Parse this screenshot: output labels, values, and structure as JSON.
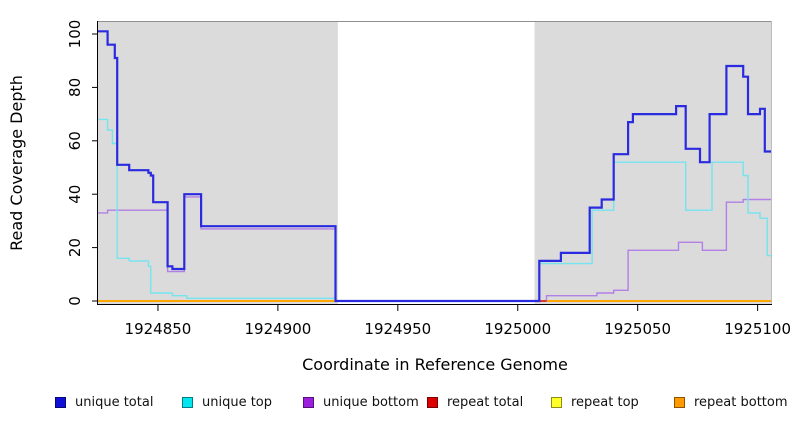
{
  "chart_data": {
    "type": "line",
    "step": true,
    "title": "",
    "xlabel": "Coordinate in Reference Genome",
    "ylabel": "Read Coverage Depth",
    "xlim": [
      1924825,
      1925106
    ],
    "ylim": [
      0,
      105
    ],
    "x_ticks": [
      1924850,
      1924900,
      1924950,
      1925000,
      1925050,
      1925100
    ],
    "y_ticks": [
      0,
      20,
      40,
      60,
      80,
      100
    ],
    "grid": false,
    "legend_position": "bottom",
    "shaded_regions": [
      {
        "x0": 1924825,
        "x1": 1924925,
        "color": "#DBDBDB"
      },
      {
        "x0": 1925007,
        "x1": 1925106,
        "color": "#DBDBDB"
      }
    ],
    "series": [
      {
        "id": "repeat-top",
        "name": "repeat top",
        "color": "#FFFF00",
        "width": 1.5,
        "points": [
          [
            1924825,
            0
          ],
          [
            1925106,
            0
          ]
        ]
      },
      {
        "id": "repeat-bottom",
        "name": "repeat bottom",
        "color": "#FFA500",
        "width": 2,
        "points": [
          [
            1924825,
            0
          ],
          [
            1925106,
            0
          ]
        ]
      },
      {
        "id": "unique-bottom",
        "name": "unique bottom",
        "color": "#B27FE6",
        "width": 1.4,
        "points": [
          [
            1924825,
            33
          ],
          [
            1924829,
            34
          ],
          [
            1924854,
            11
          ],
          [
            1924861,
            39
          ],
          [
            1924868,
            27
          ],
          [
            1924924,
            0
          ],
          [
            1925012,
            2
          ],
          [
            1925033,
            3
          ],
          [
            1925040,
            4
          ],
          [
            1925046,
            19
          ],
          [
            1925067,
            22
          ],
          [
            1925077,
            19
          ],
          [
            1925087,
            37
          ],
          [
            1925094,
            38
          ]
        ]
      },
      {
        "id": "repeat-total",
        "name": "repeat total",
        "color": "#DF2020",
        "width": 1.6,
        "points": [
          [
            1925007,
            0
          ],
          [
            1925012,
            0
          ]
        ],
        "end": 1925012
      },
      {
        "id": "unique-top",
        "name": "unique top",
        "color": "#74E4EF",
        "width": 1.4,
        "points": [
          [
            1924825,
            68
          ],
          [
            1924829,
            64
          ],
          [
            1924831,
            59
          ],
          [
            1924833,
            16
          ],
          [
            1924838,
            15
          ],
          [
            1924846,
            13
          ],
          [
            1924847,
            3
          ],
          [
            1924856,
            2
          ],
          [
            1924862,
            1
          ],
          [
            1924924,
            0
          ],
          [
            1925009,
            14
          ],
          [
            1925031,
            34
          ],
          [
            1925040,
            52
          ],
          [
            1925070,
            34
          ],
          [
            1925081,
            52
          ],
          [
            1925094,
            47
          ],
          [
            1925096,
            33
          ],
          [
            1925101,
            31
          ],
          [
            1925104,
            17
          ]
        ]
      },
      {
        "id": "unique-total",
        "name": "unique total",
        "color": "#2A2ADF",
        "width": 2.2,
        "points": [
          [
            1924825,
            101
          ],
          [
            1924829,
            96
          ],
          [
            1924832,
            91
          ],
          [
            1924833,
            51
          ],
          [
            1924838,
            49
          ],
          [
            1924846,
            48
          ],
          [
            1924847,
            47
          ],
          [
            1924848,
            37
          ],
          [
            1924854,
            13
          ],
          [
            1924856,
            12
          ],
          [
            1924861,
            40
          ],
          [
            1924868,
            28
          ],
          [
            1924924,
            0
          ],
          [
            1925009,
            15
          ],
          [
            1925018,
            18
          ],
          [
            1925030,
            35
          ],
          [
            1925035,
            38
          ],
          [
            1925040,
            55
          ],
          [
            1925046,
            67
          ],
          [
            1925048,
            70
          ],
          [
            1925066,
            73
          ],
          [
            1925070,
            57
          ],
          [
            1925076,
            52
          ],
          [
            1925080,
            70
          ],
          [
            1925087,
            88
          ],
          [
            1925094,
            84
          ],
          [
            1925096,
            70
          ],
          [
            1925101,
            72
          ],
          [
            1925103,
            56
          ]
        ]
      }
    ],
    "legend": [
      {
        "id": "unique-total",
        "label": "unique total",
        "swatch": "#0F0FD6"
      },
      {
        "id": "unique-top",
        "label": "unique top",
        "swatch": "#00E5EE"
      },
      {
        "id": "unique-bottom",
        "label": "unique bottom",
        "swatch": "#9B1FDD"
      },
      {
        "id": "repeat-total",
        "label": "repeat total",
        "swatch": "#DD0000"
      },
      {
        "id": "repeat-top",
        "label": "repeat top",
        "swatch": "#FFFF2A"
      },
      {
        "id": "repeat-bottom",
        "label": "repeat bottom",
        "swatch": "#FF9900"
      }
    ]
  }
}
